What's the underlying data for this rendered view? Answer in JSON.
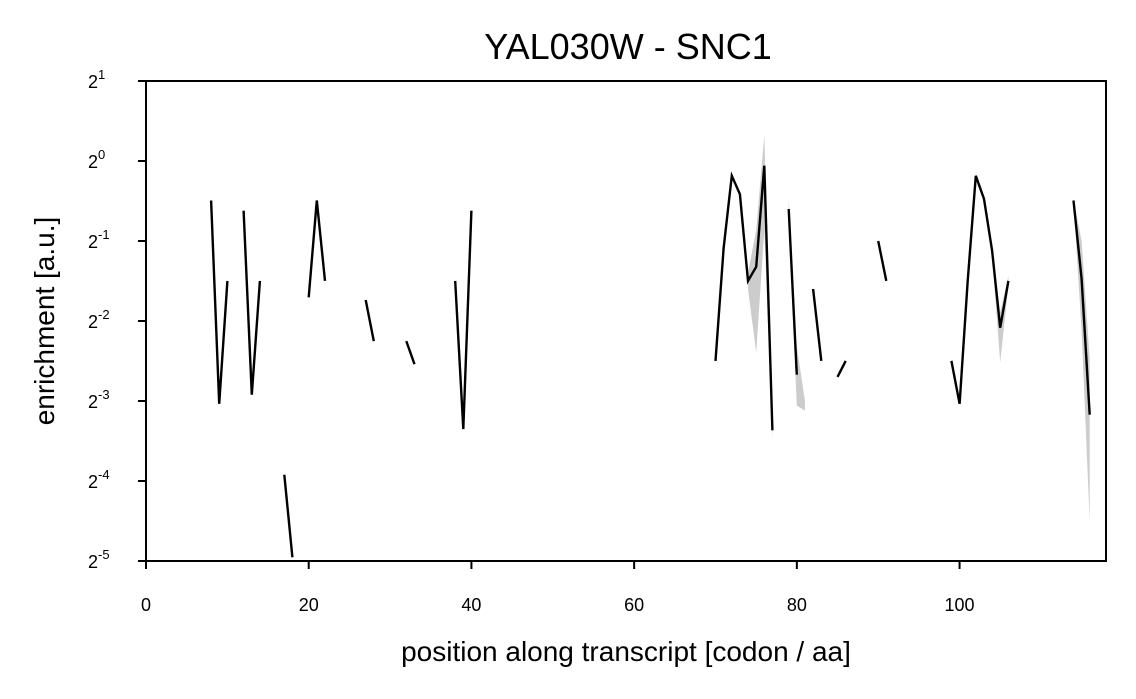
{
  "chart_data": {
    "type": "line",
    "title": "YAL030W - SNC1",
    "xlabel": "position along transcript [codon / aa]",
    "ylabel": "enrichment [a.u.]",
    "y_scale": "log2",
    "xlim": [
      0,
      118
    ],
    "ylim_exponent": [
      -5,
      1
    ],
    "x_ticks": [
      0,
      20,
      40,
      60,
      80,
      100
    ],
    "y_ticks": [
      {
        "base": "2",
        "exp": "1"
      },
      {
        "base": "2",
        "exp": "0"
      },
      {
        "base": "2",
        "exp": "-1"
      },
      {
        "base": "2",
        "exp": "-2"
      },
      {
        "base": "2",
        "exp": "-3"
      },
      {
        "base": "2",
        "exp": "-4"
      },
      {
        "base": "2",
        "exp": "-5"
      }
    ],
    "line_color": "#000000",
    "band_color": "#cccccc",
    "grid": false,
    "segments": [
      {
        "x": [
          8,
          9,
          10
        ],
        "y": [
          0.71,
          0.122,
          0.354
        ]
      },
      {
        "x": [
          12,
          13,
          14
        ],
        "y": [
          0.65,
          0.132,
          0.354
        ]
      },
      {
        "x": [
          17,
          18
        ],
        "y": [
          0.066,
          0.0323
        ]
      },
      {
        "x": [
          20,
          21,
          22
        ],
        "y": [
          0.307,
          0.71,
          0.354
        ]
      },
      {
        "x": [
          27,
          28
        ],
        "y": [
          0.3,
          0.21
        ]
      },
      {
        "x": [
          32,
          33
        ],
        "y": [
          0.21,
          0.172
        ]
      },
      {
        "x": [
          38,
          39,
          40
        ],
        "y": [
          0.354,
          0.098,
          0.65
        ]
      },
      {
        "x": [
          70,
          71,
          72,
          73,
          74,
          75,
          76,
          77
        ],
        "y": [
          0.177,
          0.469,
          0.88,
          0.75,
          0.354,
          0.4,
          0.96,
          0.097
        ]
      },
      {
        "x": [
          79,
          80
        ],
        "y": [
          0.66,
          0.157
        ]
      },
      {
        "x": [
          82,
          83
        ],
        "y": [
          0.33,
          0.177
        ]
      },
      {
        "x": [
          85,
          86
        ],
        "y": [
          0.154,
          0.177
        ]
      },
      {
        "x": [
          90,
          91
        ],
        "y": [
          0.5,
          0.354
        ]
      },
      {
        "x": [
          99,
          100,
          101,
          102,
          103,
          104,
          105,
          106
        ],
        "y": [
          0.177,
          0.122,
          0.354,
          0.88,
          0.72,
          0.46,
          0.236,
          0.354
        ]
      },
      {
        "x": [
          114,
          115,
          116
        ],
        "y": [
          0.71,
          0.36,
          0.111
        ]
      }
    ],
    "error_bands": [
      {
        "x": [
          74,
          75,
          76,
          77
        ],
        "lower": [
          0.33,
          0.19,
          0.55,
          0.09
        ],
        "upper": [
          0.38,
          0.55,
          1.25,
          0.105
        ]
      },
      {
        "x": [
          79,
          80,
          81
        ],
        "lower": [
          0.6,
          0.12,
          0.115
        ],
        "upper": [
          0.72,
          0.2,
          0.125
        ]
      },
      {
        "x": [
          104,
          105,
          106
        ],
        "lower": [
          0.44,
          0.175,
          0.34
        ],
        "upper": [
          0.48,
          0.27,
          0.37
        ]
      },
      {
        "x": [
          114,
          115,
          116
        ],
        "lower": [
          0.7,
          0.23,
          0.044
        ],
        "upper": [
          0.72,
          0.5,
          0.18
        ]
      }
    ]
  }
}
